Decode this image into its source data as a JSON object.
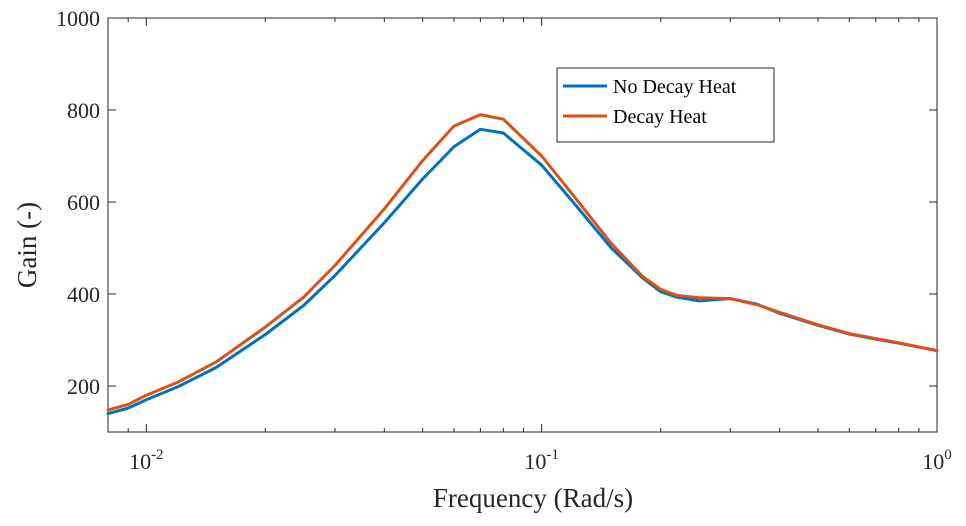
{
  "chart_data": {
    "type": "line",
    "title": "",
    "xlabel": "Frequency (Rad/s)",
    "ylabel": "Gain (-)",
    "xscale": "log",
    "xlim": [
      0.008,
      1
    ],
    "ylim": [
      100,
      1000
    ],
    "grid": false,
    "legend_position": "top-right",
    "x_ticks": [
      {
        "value": 0.01,
        "base": "10",
        "exp": "-2"
      },
      {
        "value": 0.1,
        "base": "10",
        "exp": "-1"
      },
      {
        "value": 1,
        "base": "10",
        "exp": "0"
      }
    ],
    "y_ticks": [
      200,
      400,
      600,
      800,
      1000
    ],
    "x": [
      0.008,
      0.009,
      0.01,
      0.012,
      0.015,
      0.02,
      0.025,
      0.03,
      0.04,
      0.05,
      0.06,
      0.07,
      0.08,
      0.1,
      0.12,
      0.15,
      0.18,
      0.2,
      0.22,
      0.25,
      0.3,
      0.35,
      0.4,
      0.5,
      0.6,
      0.7,
      0.8,
      1.0
    ],
    "series": [
      {
        "name": "No Decay Heat",
        "color": "#0072BD",
        "values": [
          140,
          152,
          170,
          198,
          240,
          312,
          375,
          440,
          555,
          650,
          720,
          758,
          750,
          680,
          600,
          500,
          435,
          405,
          393,
          385,
          390,
          378,
          358,
          332,
          313,
          302,
          293,
          277
        ]
      },
      {
        "name": "Decay Heat",
        "color": "#D95319",
        "values": [
          148,
          160,
          180,
          208,
          252,
          328,
          393,
          462,
          585,
          690,
          765,
          790,
          780,
          700,
          615,
          510,
          438,
          410,
          397,
          392,
          390,
          377,
          360,
          333,
          314,
          303,
          294,
          277
        ]
      }
    ]
  }
}
